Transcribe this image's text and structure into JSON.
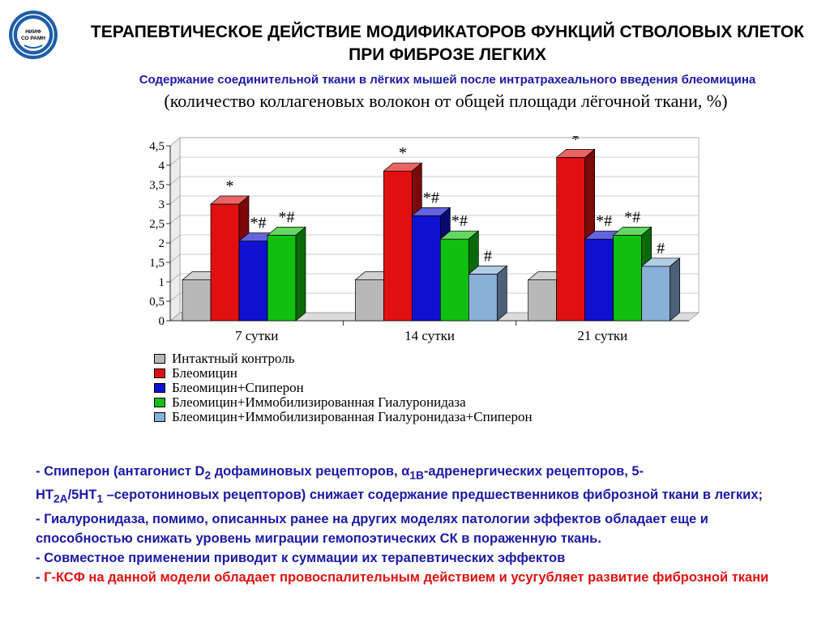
{
  "logo": {
    "line1": "НИИФ",
    "line2": "СО РАМН"
  },
  "title_line1": "ТЕРАПЕВТИЧЕСКОЕ ДЕЙСТВИЕ МОДИФИКАТОРОВ ФУНКЦИЙ СТВОЛОВЫХ КЛЕТОК",
  "title_line2": "ПРИ ФИБРОЗЕ ЛЕГКИХ",
  "subtitle": "Содержание соединительной ткани в лёгких мышей после интратрахеального введения блеомицина",
  "caption": "(количество коллагеновых волокон от общей площади лёгочной ткани, %)",
  "chart_data": {
    "type": "bar",
    "categories": [
      "7 сутки",
      "14 сутки",
      "21 сутки"
    ],
    "ylim": [
      0,
      4.5
    ],
    "yticks": [
      "0",
      "0,5",
      "1",
      "1,5",
      "2",
      "2,5",
      "3",
      "3,5",
      "4",
      "4,5"
    ],
    "series": [
      {
        "name": "Интактный контроль",
        "color": "#b8b8b8",
        "values": [
          1.05,
          1.05,
          1.05
        ],
        "labels": [
          "",
          "",
          ""
        ]
      },
      {
        "name": "Блеомицин",
        "color": "#e01010",
        "values": [
          3.0,
          3.85,
          4.2
        ],
        "labels": [
          "*",
          "*",
          "*"
        ]
      },
      {
        "name": "Блеомицин+Спиперон",
        "color": "#1010d0",
        "values": [
          2.05,
          2.7,
          2.1
        ],
        "labels": [
          "*#",
          "*#",
          "*#"
        ]
      },
      {
        "name": "Блеомицин+Иммобилизированная Гиалуронидаза",
        "color": "#10c010",
        "values": [
          2.2,
          2.1,
          2.2
        ],
        "labels": [
          "*#",
          "*#",
          "*#"
        ]
      },
      {
        "name": "Блеомицин+Иммобилизированная Гиалуронидаза+Спиперон",
        "color": "#8ab0d8",
        "values": [
          null,
          1.2,
          1.4
        ],
        "labels": [
          "",
          "#",
          "#"
        ]
      }
    ],
    "grid": true,
    "legend_position": "bottom"
  },
  "notes": {
    "n1a": "- Спиперон (антагонист D",
    "n1b": "2",
    "n1c": " дофаминовых рецепторов, α",
    "n1d": "1B",
    "n1e": "-адренергических рецепторов, 5-",
    "n1f": "НТ",
    "n1g": "2А",
    "n1h": "/5НТ",
    "n1i": "1",
    "n1j": " –серотониновых рецепторов) снижает содержание предшественников фиброзной ткани в легких;",
    "n2": "- Гиалуронидаза, помимо, описанных ранее на других моделях патологии эффектов обладает еще и способностью снижать уровень миграции гемопоэтических СК в пораженную ткань.",
    "n3": "- Совместное применении приводит к суммации их терапевтических эффектов",
    "n4a": "- ",
    "n4b": "Г-КСФ на данной модели обладает провоспалительным действием и усугубляет развитие фиброзной ткани"
  }
}
